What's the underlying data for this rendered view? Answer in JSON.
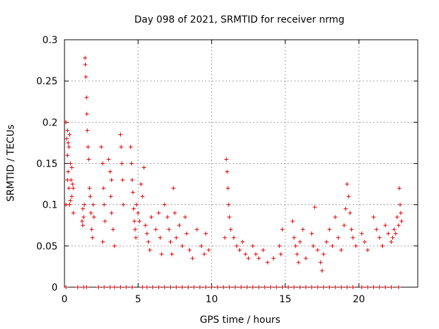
{
  "chart_data": {
    "type": "scatter",
    "title": "Day 098 of 2021, SRMTID for receiver nrmg",
    "xlabel": "GPS time / hours",
    "ylabel": "SRMTID / TECUs",
    "xlim": [
      0,
      24
    ],
    "ylim": [
      0,
      0.3
    ],
    "xticks": [
      "0",
      "5",
      "10",
      "15",
      "20"
    ],
    "yticks": [
      "0",
      "0.05",
      "0.1",
      "0.15",
      "0.2",
      "0.25",
      "0.3"
    ],
    "grid": true,
    "marker": "plus",
    "color": "#dd0000",
    "series": [
      {
        "name": "SRMTID",
        "points": [
          [
            0.1,
            0.2
          ],
          [
            0.15,
            0.18
          ],
          [
            0.2,
            0.16
          ],
          [
            0.25,
            0.14
          ],
          [
            0.3,
            0.12
          ],
          [
            0.35,
            0.1
          ],
          [
            0.2,
            0.19
          ],
          [
            0.3,
            0.17
          ],
          [
            0.4,
            0.15
          ],
          [
            0.45,
            0.13
          ],
          [
            0.5,
            0.11
          ],
          [
            0.55,
            0.125
          ],
          [
            0.6,
            0.09
          ],
          [
            0.1,
            0.1
          ],
          [
            0.2,
            0.13
          ],
          [
            0.25,
            0.175
          ],
          [
            0.35,
            0.185
          ],
          [
            0.4,
            0.105
          ],
          [
            0.5,
            0.145
          ],
          [
            0.6,
            0.12
          ],
          [
            1.2,
            0.08
          ],
          [
            1.25,
            0.075
          ],
          [
            1.3,
            0.085
          ],
          [
            1.35,
            0.1
          ],
          [
            1.4,
            0.278
          ],
          [
            1.42,
            0.27
          ],
          [
            1.45,
            0.255
          ],
          [
            1.5,
            0.23
          ],
          [
            1.52,
            0.21
          ],
          [
            1.55,
            0.19
          ],
          [
            1.6,
            0.17
          ],
          [
            1.65,
            0.155
          ],
          [
            1.7,
            0.12
          ],
          [
            1.75,
            0.11
          ],
          [
            1.8,
            0.09
          ],
          [
            1.85,
            0.07
          ],
          [
            1.9,
            0.06
          ],
          [
            1.95,
            0.1
          ],
          [
            2.0,
            0.085
          ],
          [
            1.25,
            0.095
          ],
          [
            2.5,
            0.17
          ],
          [
            2.6,
            0.15
          ],
          [
            2.65,
            0.12
          ],
          [
            2.7,
            0.1
          ],
          [
            2.75,
            0.08
          ],
          [
            2.6,
            0.055
          ],
          [
            3.0,
            0.155
          ],
          [
            3.1,
            0.14
          ],
          [
            3.15,
            0.11
          ],
          [
            3.2,
            0.09
          ],
          [
            3.3,
            0.07
          ],
          [
            3.4,
            0.05
          ],
          [
            3.2,
            0.13
          ],
          [
            3.8,
            0.185
          ],
          [
            3.85,
            0.17
          ],
          [
            3.9,
            0.15
          ],
          [
            3.95,
            0.13
          ],
          [
            4.0,
            0.1
          ],
          [
            4.5,
            0.17
          ],
          [
            4.55,
            0.15
          ],
          [
            4.6,
            0.13
          ],
          [
            4.65,
            0.115
          ],
          [
            4.7,
            0.095
          ],
          [
            4.75,
            0.08
          ],
          [
            4.8,
            0.07
          ],
          [
            4.85,
            0.06
          ],
          [
            4.9,
            0.1
          ],
          [
            5.0,
            0.09
          ],
          [
            5.1,
            0.08
          ],
          [
            5.2,
            0.125
          ],
          [
            5.3,
            0.11
          ],
          [
            5.4,
            0.145
          ],
          [
            5.5,
            0.075
          ],
          [
            5.6,
            0.065
          ],
          [
            5.7,
            0.055
          ],
          [
            5.8,
            0.045
          ],
          [
            5.9,
            0.085
          ],
          [
            6.2,
            0.07
          ],
          [
            6.4,
            0.09
          ],
          [
            6.5,
            0.06
          ],
          [
            6.6,
            0.04
          ],
          [
            6.8,
            0.1
          ],
          [
            7.0,
            0.085
          ],
          [
            7.1,
            0.07
          ],
          [
            7.2,
            0.055
          ],
          [
            7.3,
            0.04
          ],
          [
            7.4,
            0.12
          ],
          [
            7.5,
            0.09
          ],
          [
            7.6,
            0.06
          ],
          [
            7.8,
            0.075
          ],
          [
            8.0,
            0.05
          ],
          [
            8.2,
            0.085
          ],
          [
            8.3,
            0.065
          ],
          [
            8.5,
            0.045
          ],
          [
            8.7,
            0.035
          ],
          [
            9.0,
            0.07
          ],
          [
            9.3,
            0.05
          ],
          [
            9.5,
            0.04
          ],
          [
            9.6,
            0.065
          ],
          [
            9.8,
            0.045
          ],
          [
            10.9,
            0.06
          ],
          [
            11.0,
            0.155
          ],
          [
            11.05,
            0.14
          ],
          [
            11.1,
            0.12
          ],
          [
            11.15,
            0.1
          ],
          [
            11.2,
            0.085
          ],
          [
            11.3,
            0.07
          ],
          [
            11.5,
            0.06
          ],
          [
            11.7,
            0.05
          ],
          [
            11.9,
            0.045
          ],
          [
            12.1,
            0.055
          ],
          [
            12.3,
            0.04
          ],
          [
            12.5,
            0.035
          ],
          [
            12.8,
            0.05
          ],
          [
            13.0,
            0.04
          ],
          [
            13.2,
            0.035
          ],
          [
            13.5,
            0.045
          ],
          [
            13.8,
            0.03
          ],
          [
            14.2,
            0.035
          ],
          [
            14.6,
            0.05
          ],
          [
            14.7,
            0.04
          ],
          [
            14.8,
            0.07
          ],
          [
            15.5,
            0.08
          ],
          [
            15.6,
            0.06
          ],
          [
            15.7,
            0.05
          ],
          [
            15.8,
            0.04
          ],
          [
            15.9,
            0.03
          ],
          [
            16.0,
            0.055
          ],
          [
            16.2,
            0.07
          ],
          [
            16.4,
            0.035
          ],
          [
            16.8,
            0.065
          ],
          [
            16.9,
            0.05
          ],
          [
            17.0,
            0.097
          ],
          [
            17.2,
            0.045
          ],
          [
            17.4,
            0.03
          ],
          [
            17.5,
            0.02
          ],
          [
            17.6,
            0.04
          ],
          [
            17.8,
            0.055
          ],
          [
            18.0,
            0.07
          ],
          [
            18.2,
            0.05
          ],
          [
            18.4,
            0.085
          ],
          [
            18.6,
            0.06
          ],
          [
            18.8,
            0.045
          ],
          [
            19.0,
            0.075
          ],
          [
            19.1,
            0.095
          ],
          [
            19.2,
            0.125
          ],
          [
            19.3,
            0.11
          ],
          [
            19.4,
            0.09
          ],
          [
            19.5,
            0.07
          ],
          [
            19.6,
            0.06
          ],
          [
            19.8,
            0.05
          ],
          [
            20.2,
            0.065
          ],
          [
            20.4,
            0.055
          ],
          [
            20.6,
            0.045
          ],
          [
            21.0,
            0.085
          ],
          [
            21.2,
            0.07
          ],
          [
            21.4,
            0.06
          ],
          [
            21.6,
            0.05
          ],
          [
            21.8,
            0.075
          ],
          [
            22.0,
            0.065
          ],
          [
            22.2,
            0.055
          ],
          [
            22.4,
            0.07
          ],
          [
            22.6,
            0.085
          ],
          [
            22.7,
            0.075
          ],
          [
            22.75,
            0.12
          ],
          [
            22.8,
            0.1
          ],
          [
            22.85,
            0.09
          ],
          [
            22.9,
            0.08
          ],
          [
            22.5,
            0.065
          ],
          [
            22.3,
            0.06
          ]
        ]
      }
    ],
    "zero_points_x": [
      0.1,
      0.9,
      1.3,
      1.5,
      2.3,
      2.7,
      3.1,
      3.4,
      3.8,
      4.2,
      4.6,
      5.3,
      5.6,
      6.0,
      6.4,
      6.8,
      7.2,
      7.6,
      8.0,
      8.4,
      8.8,
      9.2,
      9.6,
      10.0,
      10.4,
      10.8,
      11.2,
      11.6,
      12.0,
      12.4,
      12.8,
      13.2,
      13.6,
      14.0,
      14.4,
      14.8,
      15.2,
      15.6,
      16.0,
      16.4,
      16.8,
      17.2,
      17.6,
      18.0,
      18.4,
      18.8,
      19.2,
      19.6,
      20.2,
      20.6,
      21.0,
      21.4,
      21.8,
      22.2,
      22.7
    ]
  }
}
